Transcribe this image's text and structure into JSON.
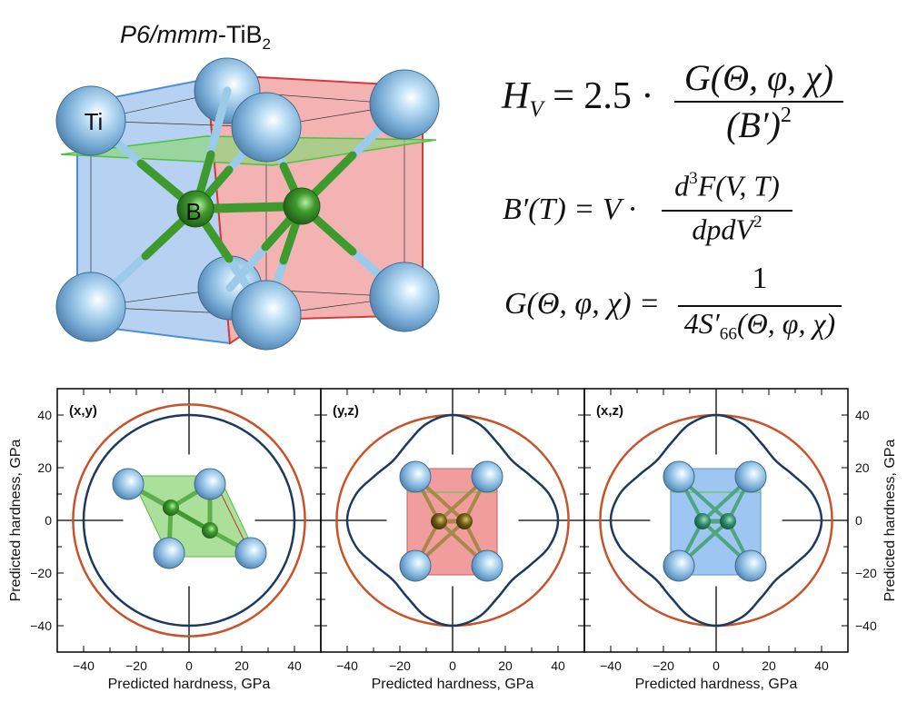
{
  "structure": {
    "title_italic": "P6/mmm",
    "title_rest": "-TiB",
    "title_sub": "2",
    "atom_label_ti": "Ti",
    "atom_label_b": "B"
  },
  "equations": {
    "hv": {
      "lhs": "H",
      "lhs_sub": "V",
      "mid": "= 2.5 ·",
      "num": "G(Θ, φ, χ)",
      "den": "(B′)",
      "den_sup": "2"
    },
    "bprime": {
      "lhs": "B′(T) = V ·",
      "num_d": "d",
      "num_sup": "3",
      "num_rest": "F(V, T)",
      "den": "dpdV",
      "den_sup": "2"
    },
    "g": {
      "lhs": "G(Θ, φ, χ) =",
      "num": "1",
      "den_pre": "4S′",
      "den_sub": "66",
      "den_rest": "(Θ, φ, χ)"
    }
  },
  "colors": {
    "red_curve": "#c8532b",
    "blue_curve": "#1b3a5e",
    "ti": "#7fb4dc",
    "b_green": "#3f9a2e",
    "blue_face": "#a9c9ef",
    "red_face": "#f1a6a6",
    "green_plane": "#8fd67a"
  },
  "chart_data": [
    {
      "type": "polar-line",
      "panel_label": "(x,y)",
      "xlabel": "Predicted hardness, GPa",
      "ylabel": "Predicted hardness, GPa",
      "xlim": [
        -50,
        50
      ],
      "ylim": [
        -50,
        50
      ],
      "xticks": [
        -40,
        -20,
        0,
        20,
        40
      ],
      "yticks": [
        -40,
        -20,
        0,
        20,
        40
      ],
      "angles_deg": [
        0,
        15,
        30,
        45,
        60,
        75,
        90,
        105,
        120,
        135,
        150,
        165,
        180,
        195,
        210,
        225,
        240,
        255,
        270,
        285,
        300,
        315,
        330,
        345
      ],
      "series": [
        {
          "name": "red",
          "color": "#c8532b",
          "radius": [
            44,
            44,
            44,
            44,
            44,
            44,
            44,
            44,
            44,
            44,
            44,
            44,
            44,
            44,
            44,
            44,
            44,
            44,
            44,
            44,
            44,
            44,
            44,
            44
          ]
        },
        {
          "name": "blue",
          "color": "#1b3a5e",
          "radius": [
            40,
            40,
            40,
            40,
            40,
            40,
            40,
            40,
            40,
            40,
            40,
            40,
            40,
            40,
            40,
            40,
            40,
            40,
            40,
            40,
            40,
            40,
            40,
            40
          ]
        }
      ]
    },
    {
      "type": "polar-line",
      "panel_label": "(y,z)",
      "xlabel": "Predicted hardness, GPa",
      "xlim": [
        -50,
        50
      ],
      "ylim": [
        -50,
        50
      ],
      "xticks": [
        -40,
        -20,
        0,
        20,
        40
      ],
      "angles_deg": [
        0,
        15,
        30,
        45,
        60,
        75,
        90,
        105,
        120,
        135,
        150,
        165,
        180,
        195,
        210,
        225,
        240,
        255,
        270,
        285,
        300,
        315,
        330,
        345
      ],
      "series": [
        {
          "name": "red",
          "color": "#c8532b",
          "radius": [
            44,
            43.7,
            42.9,
            41.9,
            40.9,
            40.2,
            40,
            40.2,
            40.9,
            41.9,
            42.9,
            43.7,
            44,
            43.7,
            42.9,
            41.9,
            40.9,
            40.2,
            40,
            40.2,
            40.9,
            41.9,
            42.9,
            43.7
          ]
        },
        {
          "name": "blue",
          "color": "#1b3a5e",
          "radius": [
            40,
            38,
            34,
            32,
            34,
            38,
            40,
            38,
            34,
            32,
            34,
            38,
            40,
            38,
            34,
            32,
            34,
            38,
            40,
            38,
            34,
            32,
            34,
            38
          ]
        }
      ]
    },
    {
      "type": "polar-line",
      "panel_label": "(x,z)",
      "xlabel": "Predicted hardness, GPa",
      "ylabel": "Predicted hardness, GPa",
      "xlim": [
        -50,
        50
      ],
      "ylim": [
        -50,
        50
      ],
      "xticks": [
        -40,
        -20,
        0,
        20,
        40
      ],
      "yticks": [
        -40,
        -20,
        0,
        20,
        40
      ],
      "angles_deg": [
        0,
        15,
        30,
        45,
        60,
        75,
        90,
        105,
        120,
        135,
        150,
        165,
        180,
        195,
        210,
        225,
        240,
        255,
        270,
        285,
        300,
        315,
        330,
        345
      ],
      "series": [
        {
          "name": "red",
          "color": "#c8532b",
          "radius": [
            44,
            43.7,
            42.9,
            41.9,
            40.9,
            40.2,
            40,
            40.2,
            40.9,
            41.9,
            42.9,
            43.7,
            44,
            43.7,
            42.9,
            41.9,
            40.9,
            40.2,
            40,
            40.2,
            40.9,
            41.9,
            42.9,
            43.7
          ]
        },
        {
          "name": "blue",
          "color": "#1b3a5e",
          "radius": [
            40,
            38,
            34,
            32,
            34,
            38,
            40,
            38,
            34,
            32,
            34,
            38,
            40,
            38,
            34,
            32,
            34,
            38,
            40,
            38,
            34,
            32,
            34,
            38
          ]
        }
      ]
    }
  ]
}
